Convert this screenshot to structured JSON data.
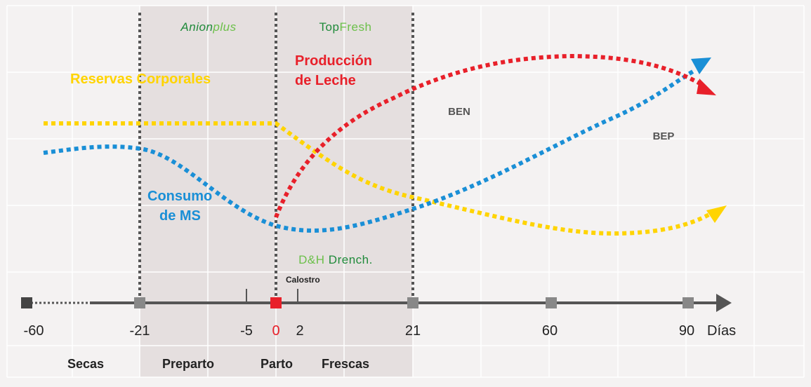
{
  "timeline": {
    "ticks": [
      {
        "value": "-60",
        "color": "#222222"
      },
      {
        "value": "-21",
        "color": "#222222"
      },
      {
        "value": "-5",
        "color": "#222222"
      },
      {
        "value": "0",
        "color": "#e8202a"
      },
      {
        "value": "2",
        "color": "#222222"
      },
      {
        "value": "21",
        "color": "#222222"
      },
      {
        "value": "60",
        "color": "#222222"
      },
      {
        "value": "90",
        "color": "#222222"
      }
    ],
    "unit_label": "Días",
    "calostro_label": "Calostro",
    "axis_color": "#555555"
  },
  "phases": {
    "secas": "Secas",
    "preparto": "Preparto",
    "parto": "Parto",
    "frescas": "Frescas"
  },
  "products": {
    "anion_main": "Anion",
    "anion_sub": "plus",
    "topfresh_main": "Top",
    "topfresh_sub": "Fresh",
    "dh_main": "D&H",
    "dh_sub": "Drench",
    "dh_mark": ".",
    "colors": {
      "dark_green": "#1f8a3a",
      "light_green": "#6cc04a"
    }
  },
  "curves": {
    "reservas": {
      "label": "Reservas Corporales",
      "color": "#ffd400"
    },
    "produccion": {
      "label_line1": "Producción",
      "label_line2": "de Leche",
      "color": "#e8202a"
    },
    "consumo": {
      "label_line1": "Consumo",
      "label_line2": "de MS",
      "color": "#1a8fd6"
    }
  },
  "zones": {
    "ben": "BEN",
    "bep": "BEP"
  },
  "colors": {
    "background": "#f4f2f2",
    "shaded_period": "#e5dfdf",
    "grid": "#ffffff",
    "divider": "#555555"
  }
}
